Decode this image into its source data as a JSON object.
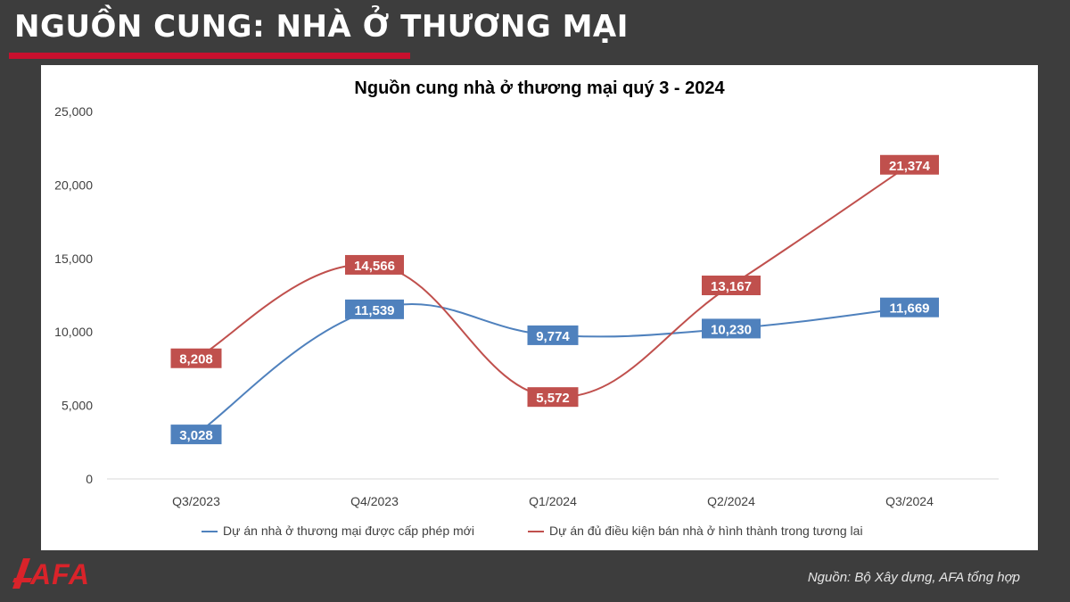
{
  "header": {
    "title": "NGUỒN CUNG: NHÀ Ở THƯƠNG MẠI"
  },
  "logo": {
    "text": "AFA"
  },
  "footer": {
    "source": "Nguồn: Bộ Xây dựng, AFA tổng hợp"
  },
  "colors": {
    "red": "#c0504d",
    "blue": "#4f81bd",
    "accent": "#c8102e"
  },
  "chart_data": {
    "type": "line",
    "title": "Nguồn cung nhà ở thương mại quý 3 - 2024",
    "categories": [
      "Q3/2023",
      "Q4/2023",
      "Q1/2024",
      "Q2/2024",
      "Q3/2024"
    ],
    "ylim": [
      0,
      25000
    ],
    "yticks": [
      "0",
      "5,000",
      "10,000",
      "15,000",
      "20,000",
      "25,000"
    ],
    "series": [
      {
        "name": "Dự án nhà ở thương mại được cấp phép mới",
        "color": "#4f81bd",
        "values": [
          3028,
          11539,
          9774,
          10230,
          11669
        ],
        "labels": [
          "3,028",
          "11,539",
          "9,774",
          "10,230",
          "11,669"
        ]
      },
      {
        "name": "Dự án đủ điều kiện bán nhà ở hình thành trong tương lai",
        "color": "#c0504d",
        "values": [
          8208,
          14566,
          5572,
          13167,
          21374
        ],
        "labels": [
          "8,208",
          "14,566",
          "5,572",
          "13,167",
          "21,374"
        ]
      }
    ],
    "legend_position": "bottom"
  }
}
